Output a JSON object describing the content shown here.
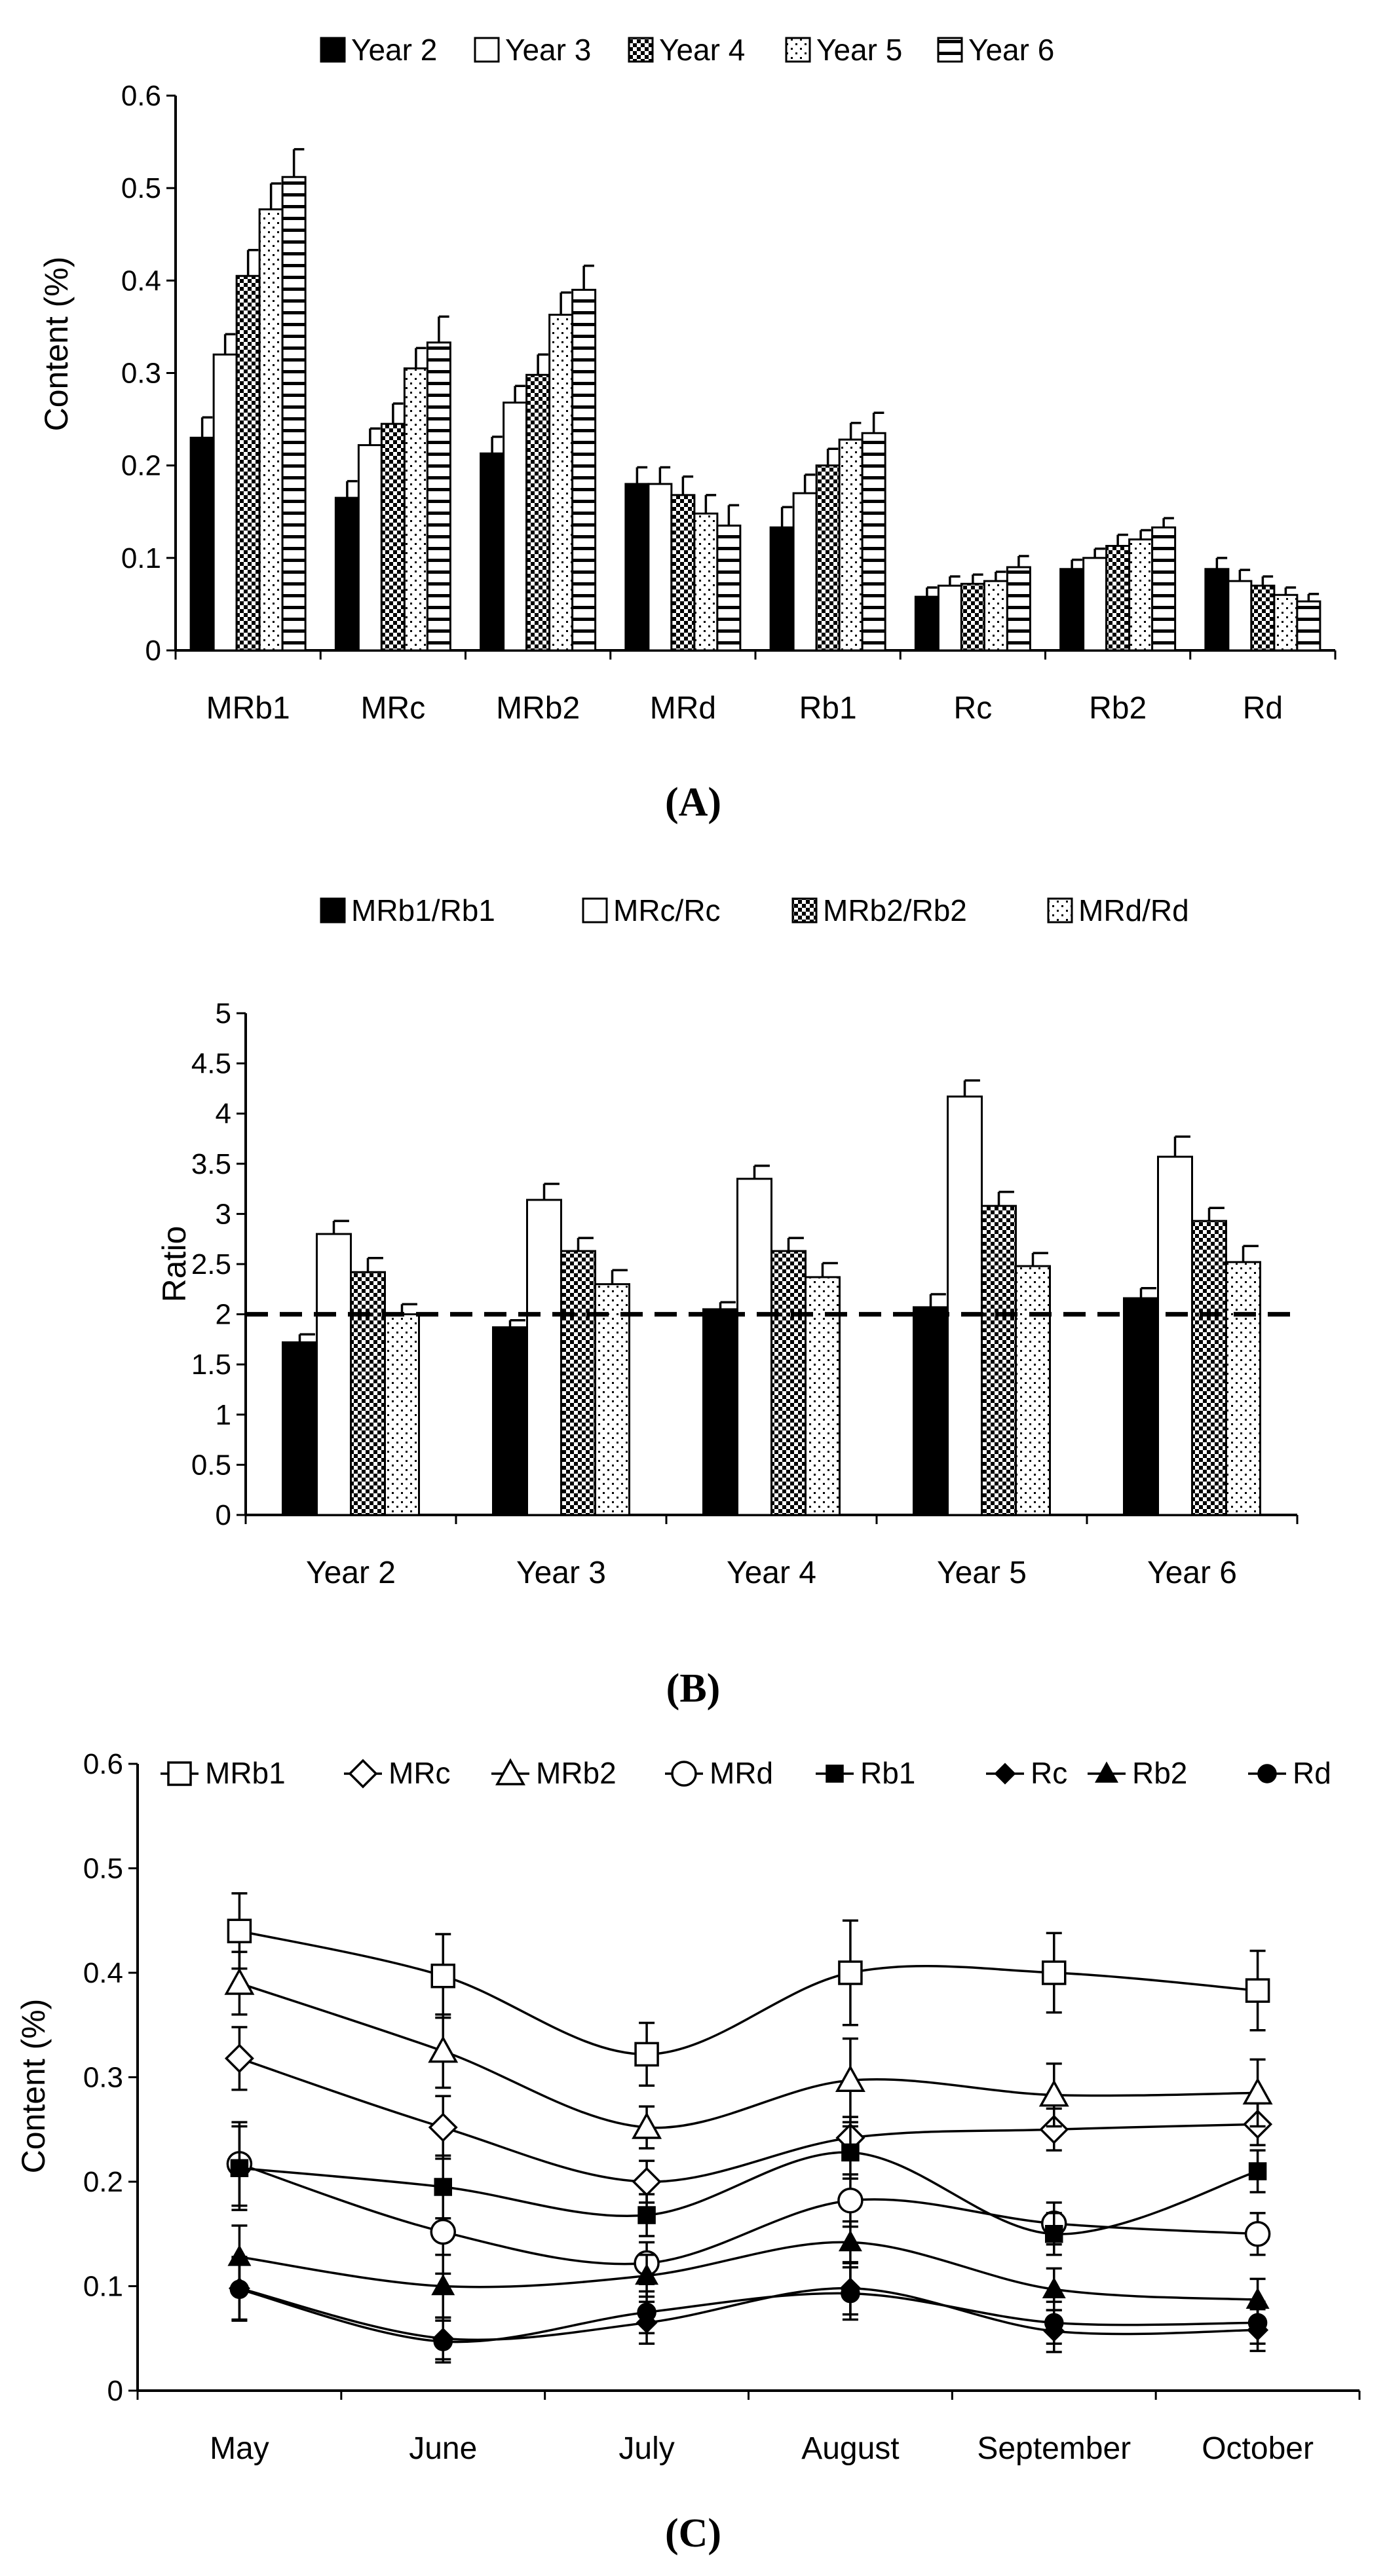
{
  "chart_data": [
    {
      "type": "bar",
      "panel_label": "(A)",
      "title": "",
      "xlabel": "",
      "ylabel": "Content (%)",
      "ylim": [
        0,
        0.6
      ],
      "yticks": [
        "0",
        "0.1",
        "0.2",
        "0.3",
        "0.4",
        "0.5",
        "0.6"
      ],
      "categories": [
        "MRb1",
        "MRc",
        "MRb2",
        "MRd",
        "Rb1",
        "Rc",
        "Rb2",
        "Rd"
      ],
      "legend_position": "top",
      "series": [
        {
          "name": "Year 2",
          "pattern": "solid",
          "values": [
            0.23,
            0.165,
            0.213,
            0.18,
            0.133,
            0.058,
            0.088,
            0.088
          ],
          "errors": [
            0.022,
            0.018,
            0.018,
            0.018,
            0.022,
            0.01,
            0.01,
            0.012
          ]
        },
        {
          "name": "Year 3",
          "pattern": "open",
          "values": [
            0.32,
            0.222,
            0.268,
            0.18,
            0.17,
            0.07,
            0.1,
            0.075
          ],
          "errors": [
            0.022,
            0.018,
            0.018,
            0.018,
            0.02,
            0.01,
            0.01,
            0.012
          ]
        },
        {
          "name": "Year 4",
          "pattern": "checker",
          "values": [
            0.405,
            0.245,
            0.298,
            0.168,
            0.2,
            0.072,
            0.113,
            0.07
          ],
          "errors": [
            0.028,
            0.022,
            0.022,
            0.02,
            0.018,
            0.01,
            0.012,
            0.01
          ]
        },
        {
          "name": "Year 5",
          "pattern": "dots",
          "values": [
            0.477,
            0.305,
            0.363,
            0.148,
            0.228,
            0.075,
            0.12,
            0.06
          ],
          "errors": [
            0.028,
            0.022,
            0.024,
            0.02,
            0.018,
            0.01,
            0.01,
            0.008
          ]
        },
        {
          "name": "Year 6",
          "pattern": "hbars",
          "values": [
            0.512,
            0.333,
            0.39,
            0.135,
            0.235,
            0.09,
            0.133,
            0.053
          ],
          "errors": [
            0.03,
            0.028,
            0.026,
            0.022,
            0.022,
            0.012,
            0.01,
            0.008
          ]
        }
      ]
    },
    {
      "type": "bar",
      "panel_label": "(B)",
      "title": "",
      "xlabel": "",
      "ylabel": "Ratio",
      "ylim": [
        0,
        5
      ],
      "yticks": [
        "0",
        "0.5",
        "1",
        "1.5",
        "2",
        "2.5",
        "3",
        "3.5",
        "4",
        "4.5",
        "5"
      ],
      "categories": [
        "Year 2",
        "Year 3",
        "Year 4",
        "Year 5",
        "Year 6"
      ],
      "reference_line": 2,
      "legend_position": "top",
      "series": [
        {
          "name": "MRb1/Rb1",
          "pattern": "solid",
          "values": [
            1.72,
            1.87,
            2.05,
            2.07,
            2.16
          ],
          "errors": [
            0.08,
            0.07,
            0.07,
            0.13,
            0.1
          ]
        },
        {
          "name": "MRc/Rc",
          "pattern": "open",
          "values": [
            2.8,
            3.14,
            3.35,
            4.17,
            3.57
          ],
          "errors": [
            0.13,
            0.16,
            0.13,
            0.16,
            0.2
          ]
        },
        {
          "name": "MRb2/Rb2",
          "pattern": "checker",
          "values": [
            2.42,
            2.63,
            2.63,
            3.08,
            2.93
          ],
          "errors": [
            0.14,
            0.13,
            0.13,
            0.14,
            0.13
          ]
        },
        {
          "name": "MRd/Rd",
          "pattern": "dots",
          "values": [
            2.0,
            2.3,
            2.37,
            2.48,
            2.52
          ],
          "errors": [
            0.1,
            0.14,
            0.14,
            0.13,
            0.16
          ]
        }
      ]
    },
    {
      "type": "line",
      "panel_label": "(C)",
      "title": "",
      "xlabel": "",
      "ylabel": "Content (%)",
      "ylim": [
        0,
        0.6
      ],
      "yticks": [
        "0",
        "0.1",
        "0.2",
        "0.3",
        "0.4",
        "0.5",
        "0.6"
      ],
      "categories": [
        "May",
        "June",
        "July",
        "August",
        "September",
        "October"
      ],
      "legend_position": "top",
      "series": [
        {
          "name": "MRb1",
          "marker": "square-open",
          "values": [
            0.44,
            0.397,
            0.322,
            0.4,
            0.4,
            0.383
          ],
          "errors": [
            0.036,
            0.04,
            0.03,
            0.05,
            0.038,
            0.038
          ]
        },
        {
          "name": "MRc",
          "marker": "diamond-open",
          "values": [
            0.318,
            0.252,
            0.2,
            0.242,
            0.25,
            0.255
          ],
          "errors": [
            0.03,
            0.03,
            0.02,
            0.02,
            0.02,
            0.02
          ]
        },
        {
          "name": "MRb2",
          "marker": "triangle-open",
          "values": [
            0.39,
            0.325,
            0.252,
            0.297,
            0.283,
            0.285
          ],
          "errors": [
            0.03,
            0.035,
            0.02,
            0.04,
            0.03,
            0.032
          ]
        },
        {
          "name": "MRd",
          "marker": "circle-open",
          "values": [
            0.217,
            0.152,
            0.122,
            0.182,
            0.16,
            0.15
          ],
          "errors": [
            0.04,
            0.04,
            0.02,
            0.025,
            0.02,
            0.02
          ]
        },
        {
          "name": "Rb1",
          "marker": "square-filled",
          "values": [
            0.213,
            0.195,
            0.168,
            0.228,
            0.15,
            0.21
          ],
          "errors": [
            0.04,
            0.03,
            0.02,
            0.025,
            0.02,
            0.02
          ]
        },
        {
          "name": "Rc",
          "marker": "diamond-filled",
          "values": [
            0.098,
            0.05,
            0.065,
            0.098,
            0.057,
            0.058
          ],
          "errors": [
            0.03,
            0.02,
            0.02,
            0.025,
            0.02,
            0.02
          ]
        },
        {
          "name": "Rb2",
          "marker": "triangle-filled",
          "values": [
            0.128,
            0.1,
            0.11,
            0.142,
            0.097,
            0.087
          ],
          "errors": [
            0.03,
            0.03,
            0.02,
            0.02,
            0.02,
            0.02
          ]
        },
        {
          "name": "Rd",
          "marker": "circle-filled",
          "values": [
            0.097,
            0.047,
            0.075,
            0.093,
            0.065,
            0.065
          ],
          "errors": [
            0.03,
            0.02,
            0.02,
            0.025,
            0.02,
            0.02
          ]
        }
      ]
    }
  ]
}
